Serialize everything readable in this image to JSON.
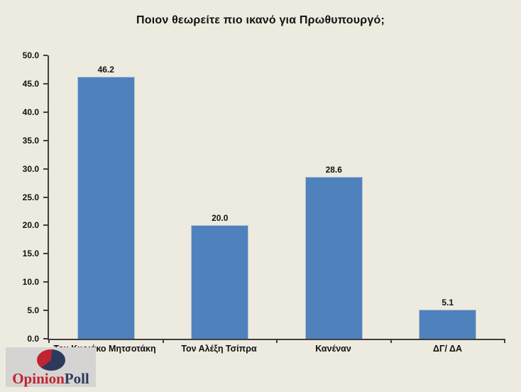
{
  "title": "Ποιον θεωρείτε πιο ικανό για Πρωθυπουργό;",
  "chart_data": {
    "type": "bar",
    "title": "Ποιον θεωρείτε πιο ικανό για Πρωθυπουργό;",
    "categories": [
      "Τον Κυριάκο Μητσοτάκη",
      "Τον Αλέξη Τσίπρα",
      "Κανέναν",
      "ΔΓ/ ΔΑ"
    ],
    "values": [
      46.2,
      20.0,
      28.6,
      5.1
    ],
    "value_labels": [
      "46.2",
      "20.0",
      "28.6",
      "5.1"
    ],
    "xlabel": "",
    "ylabel": "",
    "ylim": [
      0,
      50
    ],
    "y_tick_step": 5,
    "y_tick_labels": [
      "0.0",
      "5.0",
      "10.0",
      "15.0",
      "20.0",
      "25.0",
      "30.0",
      "35.0",
      "40.0",
      "45.0",
      "50.0"
    ],
    "grid": false,
    "legend": null,
    "bar_color": "#4f81bd"
  },
  "logo": {
    "text_primary": "Opinion",
    "text_secondary": "Poll",
    "icon": "pie-chart-icon"
  },
  "colors": {
    "background": "#edeadf",
    "bar": "#4f81bd",
    "bar_border": "#b7c4d6",
    "axis": "#3f3f3f",
    "text": "#111111",
    "logo_red": "#bf2430",
    "logo_navy": "#2e3a5c",
    "logo_bg": "#d6d4d2"
  }
}
